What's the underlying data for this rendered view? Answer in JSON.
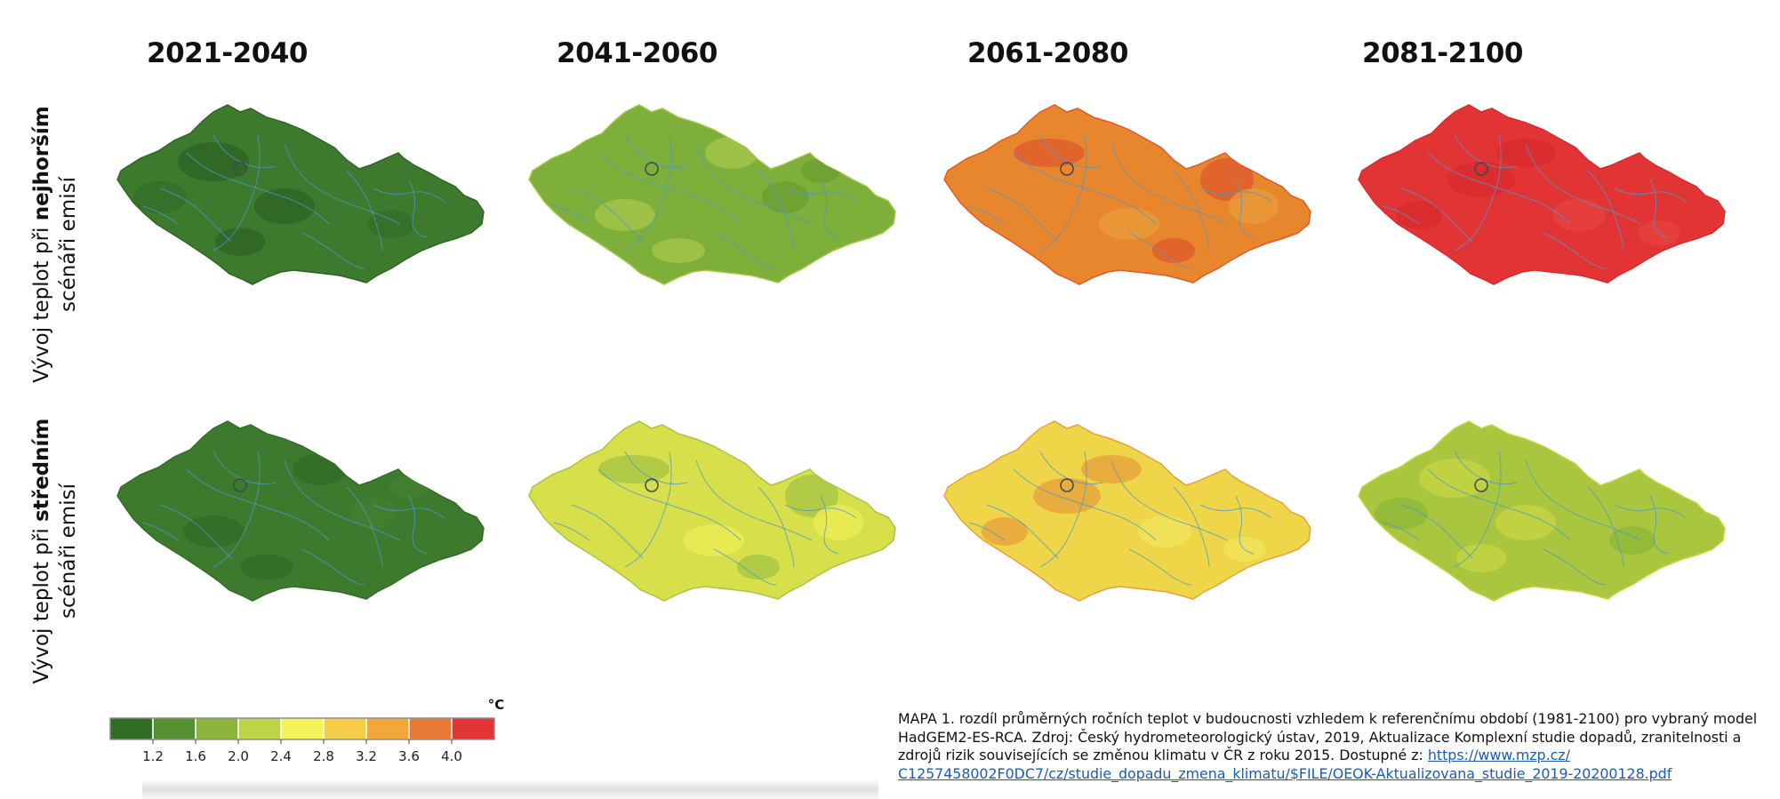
{
  "periods": [
    "2021-2040",
    "2041-2060",
    "2061-2080",
    "2081-2100"
  ],
  "rows": [
    {
      "label_line1_prefix": "Vývoj teplot při ",
      "label_line1_bold": "nejhorším",
      "label_line2": "scénáři emisí",
      "map_colors": [
        {
          "base": "#3d7a2e",
          "patch": "#2f6424",
          "patch2": "#356e29"
        },
        {
          "base": "#7eaf3a",
          "patch": "#a4c64a",
          "patch2": "#6c9e32"
        },
        {
          "base": "#e8862e",
          "patch": "#dd5b2c",
          "patch2": "#e99a38"
        },
        {
          "base": "#e23434",
          "patch": "#d92a2e",
          "patch2": "#e74040"
        }
      ]
    },
    {
      "label_line1_prefix": "Vývoj teplot při ",
      "label_line1_bold": "středním",
      "label_line2": "scénáři emisí",
      "map_colors": [
        {
          "base": "#3d7a2e",
          "patch": "#336c27",
          "patch2": "#457f31"
        },
        {
          "base": "#d7df4a",
          "patch": "#a8c545",
          "patch2": "#ecec55"
        },
        {
          "base": "#eed648",
          "patch": "#e6a23c",
          "patch2": "#f1e35a"
        },
        {
          "base": "#a9c63e",
          "patch": "#c6d444",
          "patch2": "#8fb63a"
        }
      ]
    }
  ],
  "legend": {
    "unit": "°C",
    "colors": [
      "#2f6e24",
      "#559030",
      "#8db53d",
      "#bfd34a",
      "#f4f45a",
      "#f5cd48",
      "#f1a73a",
      "#ea7836",
      "#e23434"
    ],
    "ticks": [
      "1.2",
      "1.6",
      "2.0",
      "2.4",
      "2.8",
      "3.2",
      "3.6",
      "4.0"
    ]
  },
  "caption": {
    "text": "MAPA 1. rozdíl průměrných ročních teplot v budoucnosti vzhledem k referenčnímu období (1981-2100) pro vybraný model HadGEM2-ES-RCA. Zdroj: Český hydrometeorologický ústav, 2019, Aktualizace Komplexní studie dopadů, zranitelnosti a zdrojů rizik souvisejících se změnou klimatu v ČR z roku 2015. Dostupné z: ",
    "link_part1": "https://www.mzp.cz/",
    "link_part2": "C1257458002F0DC7/cz/studie_dopadu_zmena_klimatu/$FILE/OEOK-Aktualizovana_studie_2019-20200128.pdf"
  },
  "colors": {
    "river": "#4a9ad0",
    "city": "#3a4a50",
    "link": "#1a5bb5"
  }
}
